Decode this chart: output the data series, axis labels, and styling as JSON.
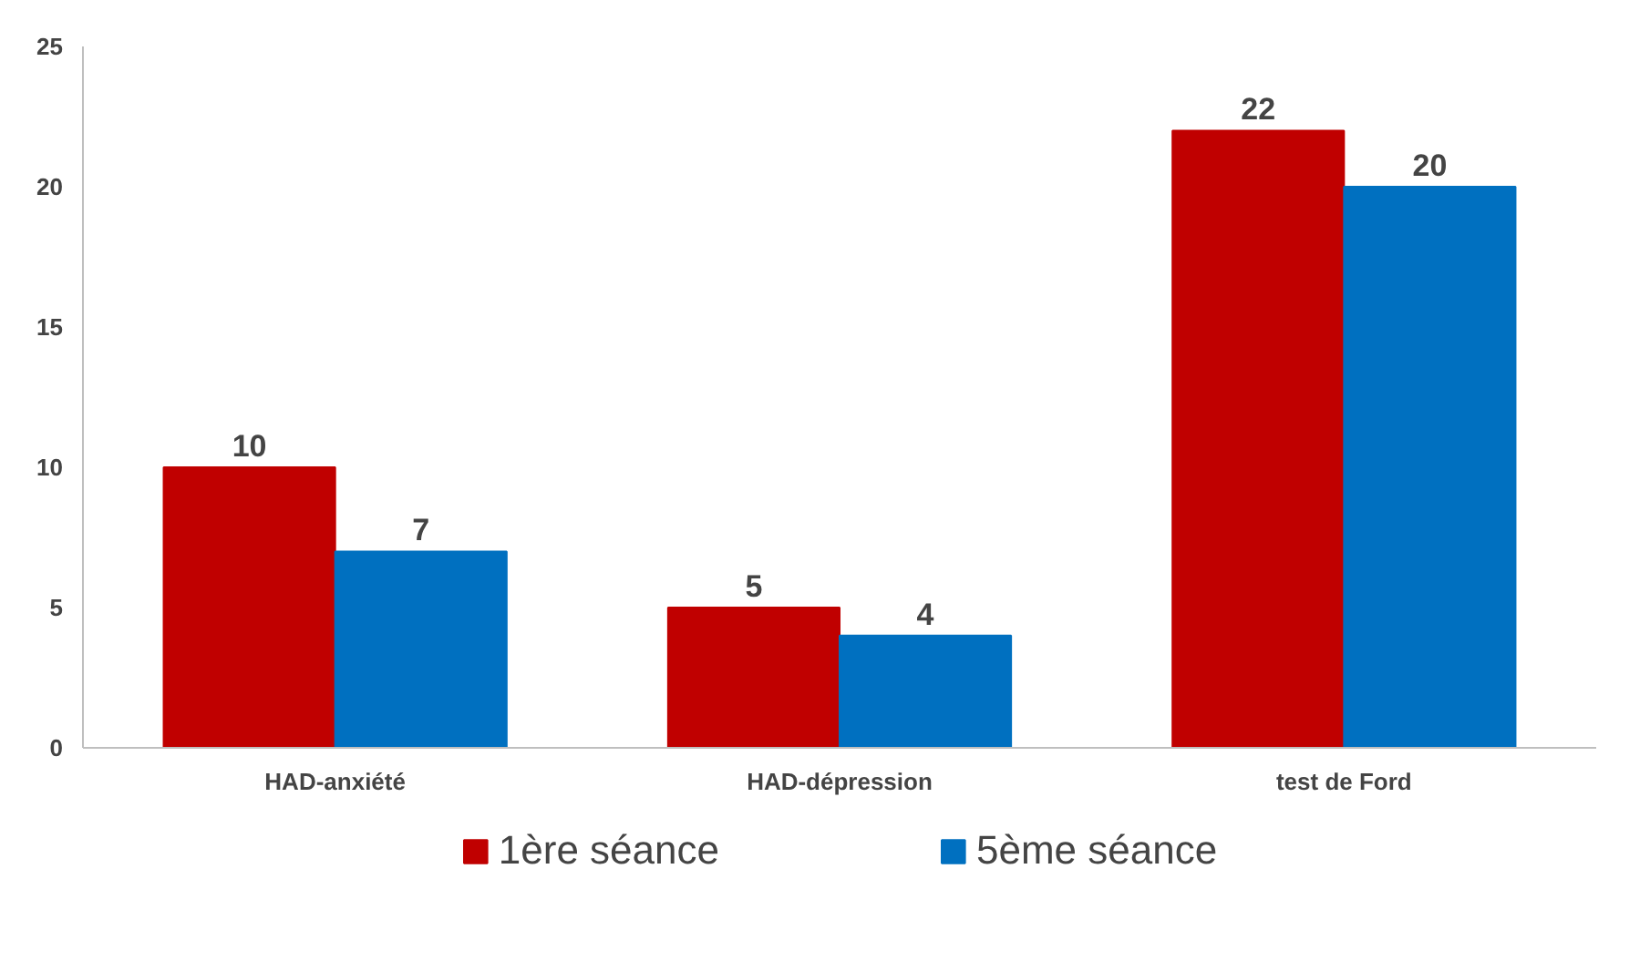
{
  "chart_data": {
    "type": "bar",
    "categories": [
      "HAD-anxiété",
      "HAD-dépression",
      "test de Ford"
    ],
    "series": [
      {
        "name": "1ère séance",
        "color": "#c00000",
        "values": [
          10,
          5,
          22
        ]
      },
      {
        "name": "5ème séance",
        "color": "#0070c0",
        "values": [
          7,
          4,
          20
        ]
      }
    ],
    "ylim": [
      0,
      25
    ],
    "yticks": [
      0,
      5,
      10,
      15,
      20,
      25
    ],
    "data_labels": true,
    "grid": false,
    "legend": "bottom"
  }
}
